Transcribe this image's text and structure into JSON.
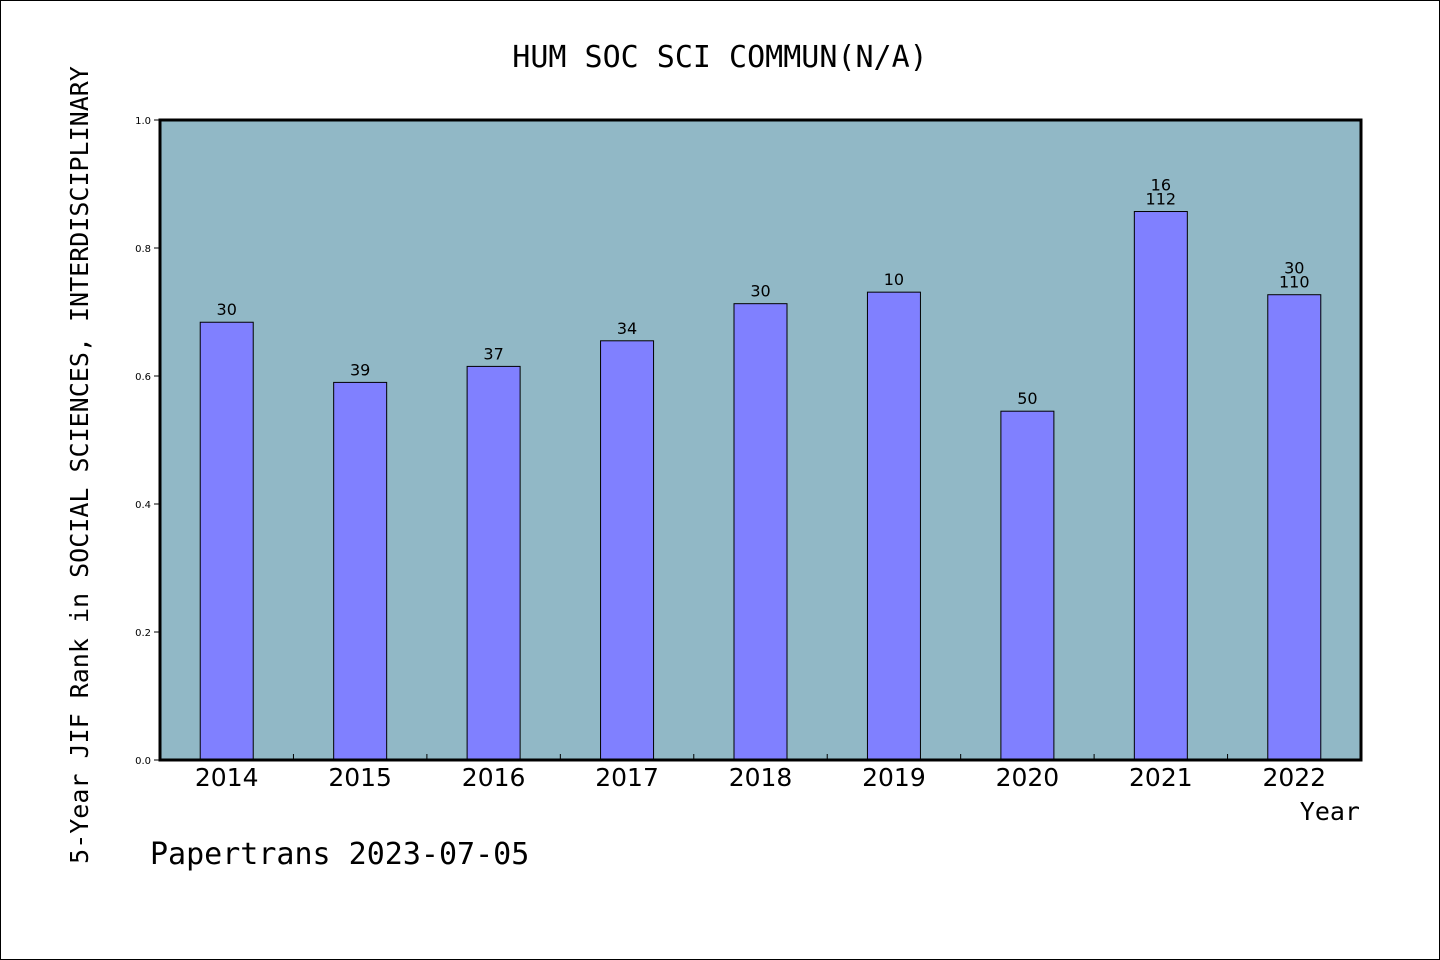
{
  "chart_data": {
    "type": "bar",
    "title": "HUM SOC SCI COMMUN(N/A)",
    "ylabel": "5-Year JIF Rank in SOCIAL SCIENCES, INTERDISCIPLINARY",
    "xlabel": "Year",
    "footer": "Papertrans 2023-07-05",
    "categories": [
      "2014",
      "2015",
      "2016",
      "2017",
      "2018",
      "2019",
      "2020",
      "2021",
      "2022"
    ],
    "values": [
      0.684,
      0.59,
      0.615,
      0.655,
      0.713,
      0.731,
      0.545,
      0.857,
      0.727
    ],
    "bar_labels": [
      [
        "30"
      ],
      [
        "39"
      ],
      [
        "37"
      ],
      [
        "34"
      ],
      [
        "30"
      ],
      [
        "10"
      ],
      [
        "50"
      ],
      [
        "16",
        "112"
      ],
      [
        "30",
        "110"
      ]
    ],
    "ylim": [
      0,
      1.0
    ],
    "yticks": [
      "0.0",
      "0.2",
      "0.4",
      "0.6",
      "0.8",
      "1.0"
    ],
    "colors": {
      "plot_background": "#91b8c6",
      "bar_fill": "#8080ff",
      "bar_stroke": "#000000"
    },
    "grid": false
  }
}
